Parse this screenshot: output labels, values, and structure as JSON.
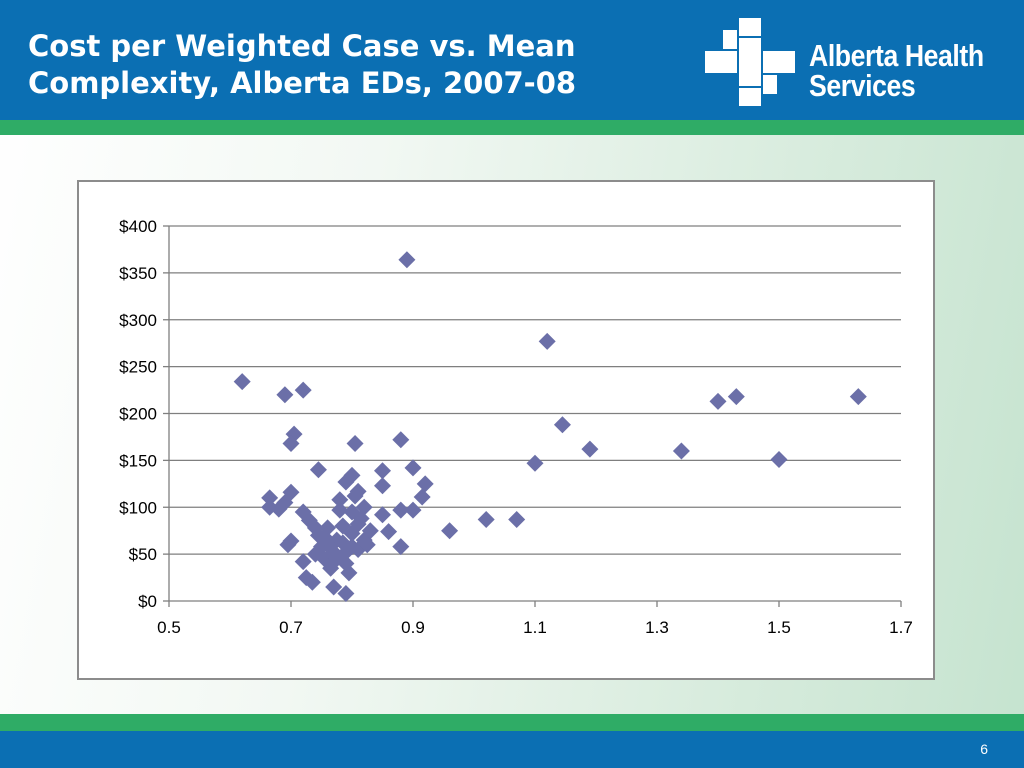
{
  "slide": {
    "title_line1": "Cost per Weighted Case vs. Mean",
    "title_line2": "Complexity, Alberta EDs, 2007-08",
    "logo": {
      "text_line1": "Alberta Health",
      "text_line2": "Services",
      "icon": "cross-logo-icon"
    },
    "page_number": "6"
  },
  "colors": {
    "header_blue": "#0b6fb3",
    "accent_green": "#2fac66",
    "marker": "#6b6fa8",
    "gridline": "#7f7f7f"
  },
  "chart_data": {
    "type": "scatter",
    "title": "",
    "xlabel": "",
    "ylabel": "",
    "xlim": [
      0.5,
      1.7
    ],
    "ylim": [
      0,
      400
    ],
    "x_ticks": [
      0.5,
      0.7,
      0.9,
      1.1,
      1.3,
      1.5,
      1.7
    ],
    "x_tick_labels": [
      "0.5",
      "0.7",
      "0.9",
      "1.1",
      "1.3",
      "1.5",
      "1.7"
    ],
    "y_ticks": [
      0,
      50,
      100,
      150,
      200,
      250,
      300,
      350,
      400
    ],
    "y_tick_labels": [
      "$0",
      "$50",
      "$100",
      "$150",
      "$200",
      "$250",
      "$300",
      "$350",
      "$400"
    ],
    "grid": "horizontal",
    "marker": "diamond",
    "points": [
      {
        "x": 0.62,
        "y": 234
      },
      {
        "x": 0.69,
        "y": 220
      },
      {
        "x": 0.72,
        "y": 225
      },
      {
        "x": 0.705,
        "y": 178
      },
      {
        "x": 0.7,
        "y": 168
      },
      {
        "x": 0.805,
        "y": 168
      },
      {
        "x": 0.89,
        "y": 364
      },
      {
        "x": 0.88,
        "y": 172
      },
      {
        "x": 1.12,
        "y": 277
      },
      {
        "x": 1.145,
        "y": 188
      },
      {
        "x": 1.19,
        "y": 162
      },
      {
        "x": 1.1,
        "y": 147
      },
      {
        "x": 1.34,
        "y": 160
      },
      {
        "x": 1.4,
        "y": 213
      },
      {
        "x": 1.43,
        "y": 218
      },
      {
        "x": 1.5,
        "y": 151
      },
      {
        "x": 1.63,
        "y": 218
      },
      {
        "x": 1.02,
        "y": 87
      },
      {
        "x": 1.07,
        "y": 87
      },
      {
        "x": 0.96,
        "y": 75
      },
      {
        "x": 0.745,
        "y": 140
      },
      {
        "x": 0.79,
        "y": 127
      },
      {
        "x": 0.8,
        "y": 134
      },
      {
        "x": 0.85,
        "y": 139
      },
      {
        "x": 0.85,
        "y": 123
      },
      {
        "x": 0.9,
        "y": 142
      },
      {
        "x": 0.92,
        "y": 125
      },
      {
        "x": 0.915,
        "y": 111
      },
      {
        "x": 0.9,
        "y": 97
      },
      {
        "x": 0.88,
        "y": 97
      },
      {
        "x": 0.85,
        "y": 92
      },
      {
        "x": 0.86,
        "y": 74
      },
      {
        "x": 0.88,
        "y": 58
      },
      {
        "x": 0.665,
        "y": 110
      },
      {
        "x": 0.665,
        "y": 100
      },
      {
        "x": 0.68,
        "y": 98
      },
      {
        "x": 0.69,
        "y": 105
      },
      {
        "x": 0.7,
        "y": 116
      },
      {
        "x": 0.72,
        "y": 95
      },
      {
        "x": 0.73,
        "y": 86
      },
      {
        "x": 0.74,
        "y": 78
      },
      {
        "x": 0.695,
        "y": 60
      },
      {
        "x": 0.7,
        "y": 64
      },
      {
        "x": 0.72,
        "y": 42
      },
      {
        "x": 0.725,
        "y": 25
      },
      {
        "x": 0.735,
        "y": 20
      },
      {
        "x": 0.74,
        "y": 50
      },
      {
        "x": 0.745,
        "y": 70
      },
      {
        "x": 0.75,
        "y": 58
      },
      {
        "x": 0.755,
        "y": 45
      },
      {
        "x": 0.76,
        "y": 60
      },
      {
        "x": 0.765,
        "y": 35
      },
      {
        "x": 0.77,
        "y": 15
      },
      {
        "x": 0.775,
        "y": 65
      },
      {
        "x": 0.78,
        "y": 97
      },
      {
        "x": 0.78,
        "y": 108
      },
      {
        "x": 0.785,
        "y": 80
      },
      {
        "x": 0.79,
        "y": 52
      },
      {
        "x": 0.79,
        "y": 40
      },
      {
        "x": 0.79,
        "y": 8
      },
      {
        "x": 0.795,
        "y": 30
      },
      {
        "x": 0.8,
        "y": 72
      },
      {
        "x": 0.8,
        "y": 95
      },
      {
        "x": 0.805,
        "y": 112
      },
      {
        "x": 0.81,
        "y": 117
      },
      {
        "x": 0.81,
        "y": 55
      },
      {
        "x": 0.815,
        "y": 88
      },
      {
        "x": 0.82,
        "y": 100
      },
      {
        "x": 0.82,
        "y": 65
      },
      {
        "x": 0.83,
        "y": 75
      },
      {
        "x": 0.825,
        "y": 60
      },
      {
        "x": 0.77,
        "y": 52
      },
      {
        "x": 0.76,
        "y": 78
      },
      {
        "x": 0.8,
        "y": 58
      },
      {
        "x": 0.785,
        "y": 62
      },
      {
        "x": 0.775,
        "y": 45
      },
      {
        "x": 0.755,
        "y": 68
      },
      {
        "x": 0.81,
        "y": 82
      }
    ]
  }
}
